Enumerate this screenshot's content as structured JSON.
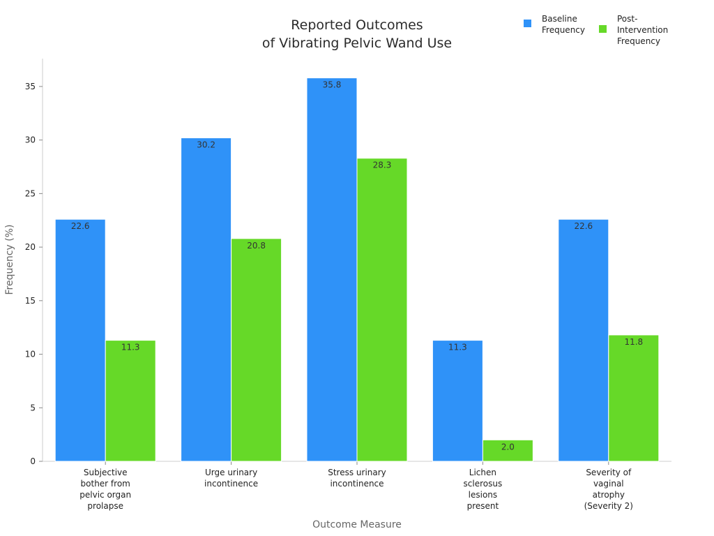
{
  "chart_data": {
    "type": "bar",
    "title": [
      "Reported Outcomes",
      "of Vibrating Pelvic Wand Use"
    ],
    "xlabel": "Outcome Measure",
    "ylabel": "Frequency (%)",
    "ylim": [
      0,
      37.6
    ],
    "yticks": [
      0,
      5,
      10,
      15,
      20,
      25,
      30,
      35
    ],
    "grid": false,
    "legend_position": "top-right",
    "categories": [
      [
        "Subjective",
        "bother from",
        "pelvic organ",
        "prolapse"
      ],
      [
        "Urge urinary",
        "incontinence"
      ],
      [
        "Stress urinary",
        "incontinence"
      ],
      [
        "Lichen",
        "sclerosus",
        "lesions",
        "present"
      ],
      [
        "Severity of",
        "vaginal",
        "atrophy",
        "(Severity 2)"
      ]
    ],
    "series": [
      {
        "name": [
          "Baseline",
          "Frequency"
        ],
        "color": "#2f92f8",
        "values": [
          22.6,
          30.2,
          35.8,
          11.3,
          22.6
        ],
        "labels": [
          "22.6",
          "30.2",
          "35.8",
          "11.3",
          "22.6"
        ]
      },
      {
        "name": [
          "Post-",
          "Intervention",
          "Frequency"
        ],
        "color": "#66d928",
        "values": [
          11.3,
          20.8,
          28.3,
          2.0,
          11.8
        ],
        "labels": [
          "11.3",
          "20.8",
          "28.3",
          "2.0",
          "11.8"
        ]
      }
    ]
  }
}
